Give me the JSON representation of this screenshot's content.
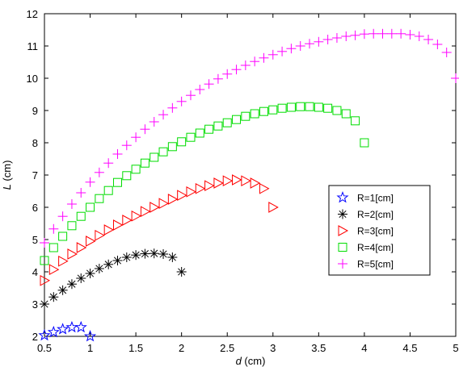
{
  "chart_data": {
    "type": "scatter",
    "title": "",
    "xlabel_var": "d",
    "xlabel_unit": " (cm)",
    "ylabel_var": "L",
    "ylabel_unit": " (cm)",
    "xlim": [
      0.5,
      5
    ],
    "ylim": [
      2,
      12
    ],
    "xticks": [
      "0.5",
      "1",
      "1.5",
      "2",
      "2.5",
      "3",
      "3.5",
      "4",
      "4.5",
      "5"
    ],
    "yticks": [
      "2",
      "3",
      "4",
      "5",
      "6",
      "7",
      "8",
      "9",
      "10",
      "11",
      "12"
    ],
    "grid": false,
    "legend_position": "right-middle",
    "series": [
      {
        "name": "R=1[cm]",
        "marker": "star",
        "color": "#0000ff",
        "x": [
          0.5,
          0.6,
          0.7,
          0.8,
          0.9,
          1.0
        ],
        "y": [
          2.03,
          2.13,
          2.22,
          2.28,
          2.28,
          2.0
        ]
      },
      {
        "name": "R=2[cm]",
        "marker": "asterisk",
        "color": "#000000",
        "x": [
          0.5,
          0.6,
          0.7,
          0.8,
          0.9,
          1.0,
          1.1,
          1.2,
          1.3,
          1.4,
          1.5,
          1.6,
          1.7,
          1.8,
          1.9,
          2.0
        ],
        "y": [
          3.0,
          3.22,
          3.43,
          3.62,
          3.8,
          3.95,
          4.1,
          4.23,
          4.35,
          4.45,
          4.52,
          4.56,
          4.57,
          4.55,
          4.45,
          4.0
        ]
      },
      {
        "name": "R=3[cm]",
        "marker": "triangle-right",
        "color": "#ff0000",
        "x": [
          0.5,
          0.6,
          0.7,
          0.8,
          0.9,
          1.0,
          1.1,
          1.2,
          1.3,
          1.4,
          1.5,
          1.6,
          1.7,
          1.8,
          1.9,
          2.0,
          2.1,
          2.2,
          2.3,
          2.4,
          2.5,
          2.6,
          2.7,
          2.8,
          2.9,
          3.0
        ],
        "y": [
          3.73,
          4.07,
          4.33,
          4.55,
          4.75,
          4.95,
          5.13,
          5.3,
          5.45,
          5.6,
          5.73,
          5.87,
          6.0,
          6.12,
          6.25,
          6.37,
          6.48,
          6.58,
          6.67,
          6.75,
          6.82,
          6.85,
          6.82,
          6.75,
          6.58,
          6.0
        ]
      },
      {
        "name": "R=4[cm]",
        "marker": "square",
        "color": "#00dd00",
        "x": [
          0.5,
          0.6,
          0.7,
          0.8,
          0.9,
          1.0,
          1.1,
          1.2,
          1.3,
          1.4,
          1.5,
          1.6,
          1.7,
          1.8,
          1.9,
          2.0,
          2.1,
          2.2,
          2.3,
          2.4,
          2.5,
          2.6,
          2.7,
          2.8,
          2.9,
          3.0,
          3.1,
          3.2,
          3.3,
          3.4,
          3.5,
          3.6,
          3.7,
          3.8,
          3.9,
          4.0
        ],
        "y": [
          4.35,
          4.75,
          5.1,
          5.43,
          5.72,
          6.0,
          6.27,
          6.52,
          6.77,
          6.98,
          7.18,
          7.37,
          7.55,
          7.72,
          7.88,
          8.03,
          8.17,
          8.3,
          8.42,
          8.52,
          8.62,
          8.72,
          8.82,
          8.9,
          8.97,
          9.02,
          9.07,
          9.1,
          9.12,
          9.12,
          9.1,
          9.07,
          9.0,
          8.9,
          8.68,
          8.0
        ]
      },
      {
        "name": "R=5[cm]",
        "marker": "plus",
        "color": "#ff00ff",
        "x": [
          0.5,
          0.6,
          0.7,
          0.8,
          0.9,
          1.0,
          1.1,
          1.2,
          1.3,
          1.4,
          1.5,
          1.6,
          1.7,
          1.8,
          1.9,
          2.0,
          2.1,
          2.2,
          2.3,
          2.4,
          2.5,
          2.6,
          2.7,
          2.8,
          2.9,
          3.0,
          3.1,
          3.2,
          3.3,
          3.4,
          3.5,
          3.6,
          3.7,
          3.8,
          3.9,
          4.0,
          4.1,
          4.2,
          4.3,
          4.4,
          4.5,
          4.6,
          4.7,
          4.8,
          4.9,
          5.0
        ],
        "y": [
          4.9,
          5.33,
          5.72,
          6.1,
          6.45,
          6.78,
          7.08,
          7.37,
          7.65,
          7.92,
          8.17,
          8.42,
          8.65,
          8.87,
          9.08,
          9.28,
          9.47,
          9.65,
          9.82,
          9.98,
          10.13,
          10.27,
          10.4,
          10.52,
          10.63,
          10.73,
          10.83,
          10.92,
          11.0,
          11.07,
          11.13,
          11.2,
          11.25,
          11.3,
          11.33,
          11.37,
          11.38,
          11.38,
          11.38,
          11.38,
          11.35,
          11.3,
          11.2,
          11.05,
          10.8,
          10.0
        ]
      }
    ]
  }
}
